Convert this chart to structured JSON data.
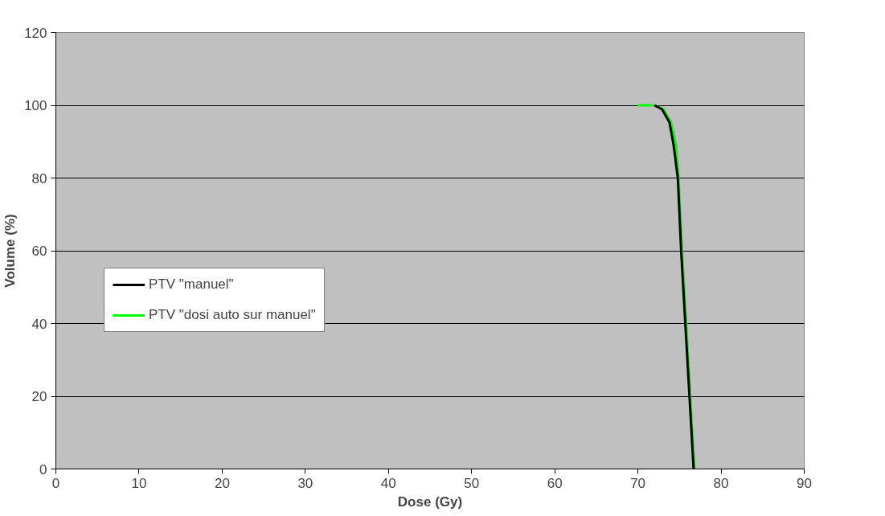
{
  "chart_data": {
    "type": "line",
    "xlabel": "Dose (Gy)",
    "ylabel": "Volume (%)",
    "xlim": [
      0,
      90
    ],
    "xticks": [
      0,
      10,
      20,
      30,
      40,
      50,
      60,
      70,
      80,
      90
    ],
    "ylim": [
      0,
      120
    ],
    "yticks": [
      0,
      20,
      40,
      60,
      80,
      100,
      120
    ],
    "grid": "y",
    "legend": "left",
    "line_style": "solid",
    "series": [
      {
        "name": "PTV \"manuel\"",
        "color": "#000000",
        "x": [
          72,
          72.9,
          73.8,
          74.3,
          74.8,
          75.2,
          75.7,
          76.2,
          76.7
        ],
        "values": [
          100,
          98.9,
          95.3,
          89,
          80,
          60,
          40,
          20,
          0
        ]
      },
      {
        "name": "PTV \"dosi auto sur manuel\"",
        "color": "#00ff00",
        "x": [
          70,
          72,
          73.1,
          74,
          74.6,
          74.9,
          75.3,
          75.8,
          76.3,
          76.8
        ],
        "values": [
          100,
          100,
          98.9,
          95.3,
          89,
          80,
          60.1,
          40.3,
          20,
          0
        ]
      }
    ]
  }
}
